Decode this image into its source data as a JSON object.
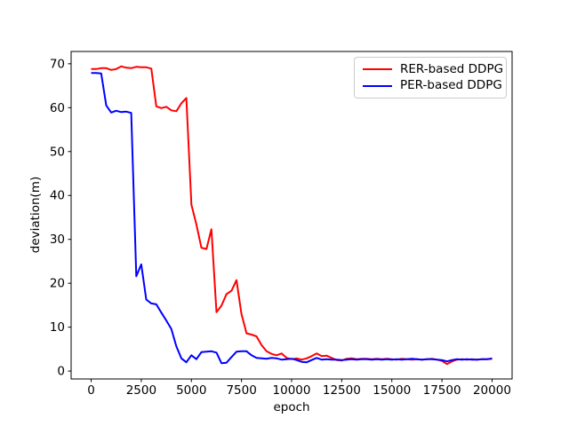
{
  "chart_data": {
    "type": "line",
    "title": "",
    "xlabel": "epoch",
    "ylabel": "deviation(m)",
    "xlim": [
      -1000,
      21000
    ],
    "ylim": [
      -1.8,
      72.8
    ],
    "x_ticks": [
      0,
      2500,
      5000,
      7500,
      10000,
      12500,
      15000,
      17500,
      20000
    ],
    "y_ticks": [
      0,
      10,
      20,
      30,
      40,
      50,
      60,
      70
    ],
    "grid": false,
    "background": "#ffffff",
    "axis_color": "#000000",
    "legend": {
      "position": "upper right",
      "border_color": "#cccccc"
    },
    "x": [
      0,
      250,
      500,
      750,
      1000,
      1250,
      1500,
      1750,
      2000,
      2250,
      2500,
      2750,
      3000,
      3250,
      3500,
      3750,
      4000,
      4250,
      4500,
      4750,
      5000,
      5250,
      5500,
      5750,
      6000,
      6250,
      6500,
      6750,
      7000,
      7250,
      7500,
      7750,
      8000,
      8250,
      8500,
      8750,
      9000,
      9250,
      9500,
      9750,
      10000,
      10250,
      10500,
      10750,
      11000,
      11250,
      11500,
      11750,
      12000,
      12250,
      12500,
      12750,
      13000,
      13250,
      13500,
      13750,
      14000,
      14250,
      14500,
      14750,
      15000,
      15250,
      15500,
      15750,
      16000,
      16250,
      16500,
      16750,
      17000,
      17250,
      17500,
      17750,
      18000,
      18250,
      18500,
      18750,
      19000,
      19250,
      19500,
      19750,
      20000
    ],
    "series": [
      {
        "name": "RER-based DDPG",
        "color": "#ff0000",
        "values": [
          68.8,
          68.8,
          69.0,
          69.0,
          68.6,
          68.8,
          69.4,
          69.1,
          69.0,
          69.3,
          69.2,
          69.2,
          68.9,
          60.3,
          59.9,
          60.2,
          59.4,
          59.2,
          61.0,
          62.2,
          37.9,
          33.4,
          28.1,
          27.8,
          32.3,
          13.4,
          14.9,
          17.5,
          18.3,
          20.7,
          13.0,
          8.6,
          8.3,
          7.9,
          5.9,
          4.5,
          3.9,
          3.6,
          4.0,
          3.0,
          2.7,
          2.9,
          2.6,
          2.9,
          3.4,
          4.0,
          3.4,
          3.5,
          3.0,
          2.5,
          2.4,
          2.8,
          2.9,
          2.7,
          2.8,
          2.8,
          2.7,
          2.8,
          2.7,
          2.8,
          2.7,
          2.6,
          2.8,
          2.7,
          2.6,
          2.7,
          2.6,
          2.7,
          2.8,
          2.6,
          2.3,
          1.6,
          2.2,
          2.6,
          2.7,
          2.6,
          2.7,
          2.6,
          2.7,
          2.7,
          2.9
        ]
      },
      {
        "name": "PER-based DDPG",
        "color": "#0000ff",
        "values": [
          67.9,
          67.9,
          67.8,
          60.5,
          58.9,
          59.3,
          59.0,
          59.1,
          58.8,
          21.6,
          24.3,
          16.3,
          15.4,
          15.2,
          13.3,
          11.5,
          9.6,
          5.6,
          2.9,
          2.0,
          3.6,
          2.7,
          4.3,
          4.4,
          4.5,
          4.2,
          1.8,
          1.9,
          3.2,
          4.4,
          4.5,
          4.5,
          3.6,
          3.0,
          2.9,
          2.8,
          3.0,
          2.9,
          2.6,
          2.7,
          2.8,
          2.5,
          2.1,
          2.0,
          2.5,
          3.0,
          2.6,
          2.7,
          2.6,
          2.6,
          2.5,
          2.6,
          2.7,
          2.6,
          2.7,
          2.7,
          2.6,
          2.7,
          2.6,
          2.7,
          2.6,
          2.7,
          2.6,
          2.7,
          2.8,
          2.7,
          2.6,
          2.7,
          2.7,
          2.6,
          2.5,
          2.2,
          2.5,
          2.7,
          2.6,
          2.7,
          2.6,
          2.6,
          2.7,
          2.7,
          2.8
        ]
      }
    ]
  }
}
